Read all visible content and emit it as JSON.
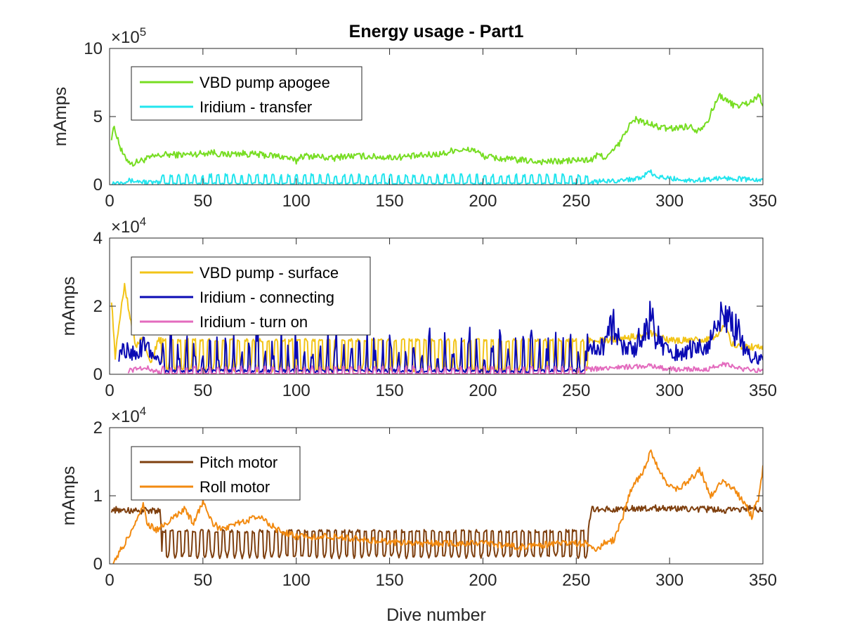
{
  "title": "Energy usage - Part1",
  "xlabel": "Dive number",
  "chart_data": [
    {
      "type": "line",
      "ylabel": "mAmps",
      "y_multiplier": {
        "base": "×10",
        "exp": "5"
      },
      "xlim": [
        0,
        350
      ],
      "ylim": [
        0,
        10
      ],
      "xticks": [
        0,
        50,
        100,
        150,
        200,
        250,
        300,
        350
      ],
      "yticks": [
        0,
        5,
        10
      ],
      "legend_position": "upper-left",
      "series": [
        {
          "name": "VBD pump apogee",
          "color": "#77DD22",
          "kind": "curve",
          "points": [
            [
              1,
              3.5
            ],
            [
              2,
              4.2
            ],
            [
              4,
              3.6
            ],
            [
              6,
              2.6
            ],
            [
              8,
              2.0
            ],
            [
              10,
              1.8
            ],
            [
              12,
              1.5
            ],
            [
              15,
              1.7
            ],
            [
              20,
              1.9
            ],
            [
              25,
              2.1
            ],
            [
              30,
              2.2
            ],
            [
              40,
              2.2
            ],
            [
              50,
              2.3
            ],
            [
              55,
              2.4
            ],
            [
              60,
              2.2
            ],
            [
              70,
              2.3
            ],
            [
              80,
              2.2
            ],
            [
              90,
              2.1
            ],
            [
              95,
              2.0
            ],
            [
              100,
              1.7
            ],
            [
              102,
              2.1
            ],
            [
              110,
              2.1
            ],
            [
              120,
              1.9
            ],
            [
              125,
              2.1
            ],
            [
              135,
              2.1
            ],
            [
              150,
              2.0
            ],
            [
              165,
              2.1
            ],
            [
              180,
              2.3
            ],
            [
              185,
              2.6
            ],
            [
              190,
              2.5
            ],
            [
              195,
              2.6
            ],
            [
              200,
              2.1
            ],
            [
              210,
              1.9
            ],
            [
              220,
              1.8
            ],
            [
              230,
              1.7
            ],
            [
              240,
              1.7
            ],
            [
              250,
              1.8
            ],
            [
              258,
              1.8
            ],
            [
              262,
              2.2
            ],
            [
              266,
              2.0
            ],
            [
              270,
              2.5
            ],
            [
              274,
              3.2
            ],
            [
              278,
              4.3
            ],
            [
              282,
              4.8
            ],
            [
              290,
              4.4
            ],
            [
              295,
              4.2
            ],
            [
              300,
              4.1
            ],
            [
              305,
              4.2
            ],
            [
              310,
              4.3
            ],
            [
              315,
              4.0
            ],
            [
              320,
              4.6
            ],
            [
              324,
              5.8
            ],
            [
              327,
              6.6
            ],
            [
              330,
              6.2
            ],
            [
              335,
              5.8
            ],
            [
              340,
              5.9
            ],
            [
              345,
              6.2
            ],
            [
              348,
              6.6
            ],
            [
              350,
              5.9
            ]
          ]
        },
        {
          "name": "Iridium - transfer",
          "color": "#22E5EE",
          "kind": "spiky",
          "points": [
            [
              1,
              0.1
            ],
            [
              10,
              0.3
            ],
            [
              28,
              0.1
            ],
            [
              29,
              0.5
            ],
            [
              30,
              0.1
            ],
            [
              32,
              0.5
            ],
            [
              33,
              0.1
            ],
            [
              258,
              0.1
            ],
            [
              260,
              0.2
            ],
            [
              270,
              0.3
            ],
            [
              280,
              0.4
            ],
            [
              285,
              0.6
            ],
            [
              290,
              0.9
            ],
            [
              292,
              0.6
            ],
            [
              298,
              0.5
            ],
            [
              305,
              0.4
            ],
            [
              312,
              0.3
            ],
            [
              320,
              0.4
            ],
            [
              330,
              0.5
            ],
            [
              340,
              0.4
            ],
            [
              350,
              0.3
            ]
          ]
        }
      ]
    },
    {
      "type": "line",
      "ylabel": "mAmps",
      "y_multiplier": {
        "base": "×10",
        "exp": "4"
      },
      "xlim": [
        0,
        350
      ],
      "ylim": [
        0,
        4
      ],
      "xticks": [
        0,
        50,
        100,
        150,
        200,
        250,
        300,
        350
      ],
      "yticks": [
        0,
        2,
        4
      ],
      "legend_position": "upper-left",
      "series": [
        {
          "name": "VBD pump - surface",
          "color": "#F2C418",
          "kind": "oscillating",
          "low": 0.1,
          "high": 1.0,
          "points": [
            [
              1,
              2.2
            ],
            [
              3,
              0.5
            ],
            [
              5,
              1.5
            ],
            [
              8,
              2.6
            ],
            [
              10,
              2.0
            ],
            [
              14,
              0.8
            ],
            [
              18,
              1.1
            ],
            [
              22,
              0.3
            ],
            [
              26,
              1.0
            ],
            [
              256,
              1.0
            ],
            [
              258,
              1.0
            ],
            [
              265,
              1.0
            ],
            [
              280,
              1.1
            ],
            [
              290,
              1.2
            ],
            [
              300,
              1.0
            ],
            [
              315,
              1.0
            ],
            [
              325,
              1.1
            ],
            [
              330,
              1.5
            ],
            [
              333,
              0.9
            ],
            [
              340,
              0.8
            ],
            [
              350,
              0.8
            ]
          ]
        },
        {
          "name": "Iridium - connecting",
          "color": "#0A0AB4",
          "kind": "spiky",
          "points": [
            [
              5,
              0.6
            ],
            [
              10,
              0.8
            ],
            [
              15,
              0.5
            ],
            [
              18,
              1.0
            ],
            [
              22,
              0.6
            ],
            [
              26,
              0.4
            ],
            [
              258,
              0.7
            ],
            [
              265,
              0.9
            ],
            [
              270,
              1.5
            ],
            [
              275,
              0.8
            ],
            [
              280,
              0.7
            ],
            [
              290,
              1.6
            ],
            [
              295,
              0.9
            ],
            [
              300,
              0.6
            ],
            [
              310,
              0.7
            ],
            [
              320,
              0.8
            ],
            [
              330,
              1.8
            ],
            [
              335,
              1.4
            ],
            [
              340,
              0.8
            ],
            [
              345,
              0.5
            ],
            [
              350,
              0.4
            ]
          ]
        },
        {
          "name": "Iridium - turn on",
          "color": "#E36BBE",
          "kind": "spiky",
          "points": [
            [
              10,
              0.1
            ],
            [
              20,
              0.2
            ],
            [
              26,
              0.05
            ],
            [
              258,
              0.15
            ],
            [
              270,
              0.2
            ],
            [
              290,
              0.25
            ],
            [
              300,
              0.15
            ],
            [
              320,
              0.15
            ],
            [
              330,
              0.3
            ],
            [
              340,
              0.15
            ],
            [
              350,
              0.1
            ]
          ]
        }
      ]
    },
    {
      "type": "line",
      "ylabel": "mAmps",
      "y_multiplier": {
        "base": "×10",
        "exp": "4"
      },
      "xlim": [
        0,
        350
      ],
      "ylim": [
        0,
        2
      ],
      "xticks": [
        0,
        50,
        100,
        150,
        200,
        250,
        300,
        350
      ],
      "yticks": [
        0,
        1,
        2
      ],
      "legend_position": "upper-left",
      "series": [
        {
          "name": "Pitch motor",
          "color": "#7E3F0E",
          "kind": "oscillating",
          "low": 0.1,
          "high": 0.48,
          "points": [
            [
              1,
              0.8
            ],
            [
              10,
              0.78
            ],
            [
              20,
              0.78
            ],
            [
              27,
              0.78
            ],
            [
              28,
              0.4
            ],
            [
              256,
              0.4
            ],
            [
              258,
              0.8
            ],
            [
              270,
              0.8
            ],
            [
              290,
              0.82
            ],
            [
              310,
              0.8
            ],
            [
              325,
              0.8
            ],
            [
              330,
              0.78
            ],
            [
              340,
              0.82
            ],
            [
              350,
              0.8
            ]
          ]
        },
        {
          "name": "Roll motor",
          "color": "#F28A10",
          "kind": "curve",
          "points": [
            [
              2,
              0.05
            ],
            [
              4,
              0.1
            ],
            [
              8,
              0.3
            ],
            [
              12,
              0.5
            ],
            [
              16,
              0.7
            ],
            [
              18,
              0.9
            ],
            [
              20,
              0.6
            ],
            [
              25,
              0.5
            ],
            [
              30,
              0.6
            ],
            [
              35,
              0.7
            ],
            [
              40,
              0.8
            ],
            [
              45,
              0.6
            ],
            [
              50,
              0.9
            ],
            [
              55,
              0.6
            ],
            [
              60,
              0.5
            ],
            [
              70,
              0.6
            ],
            [
              80,
              0.7
            ],
            [
              90,
              0.5
            ],
            [
              100,
              0.4
            ],
            [
              120,
              0.4
            ],
            [
              140,
              0.35
            ],
            [
              160,
              0.3
            ],
            [
              180,
              0.3
            ],
            [
              200,
              0.3
            ],
            [
              220,
              0.25
            ],
            [
              240,
              0.3
            ],
            [
              255,
              0.3
            ],
            [
              260,
              0.2
            ],
            [
              265,
              0.3
            ],
            [
              270,
              0.35
            ],
            [
              275,
              0.7
            ],
            [
              278,
              1.0
            ],
            [
              282,
              1.2
            ],
            [
              286,
              1.35
            ],
            [
              290,
              1.65
            ],
            [
              294,
              1.4
            ],
            [
              298,
              1.2
            ],
            [
              304,
              1.1
            ],
            [
              310,
              1.2
            ],
            [
              316,
              1.4
            ],
            [
              322,
              1.0
            ],
            [
              328,
              1.2
            ],
            [
              334,
              1.1
            ],
            [
              340,
              0.9
            ],
            [
              344,
              0.7
            ],
            [
              348,
              1.0
            ],
            [
              350,
              1.4
            ]
          ]
        }
      ]
    }
  ]
}
